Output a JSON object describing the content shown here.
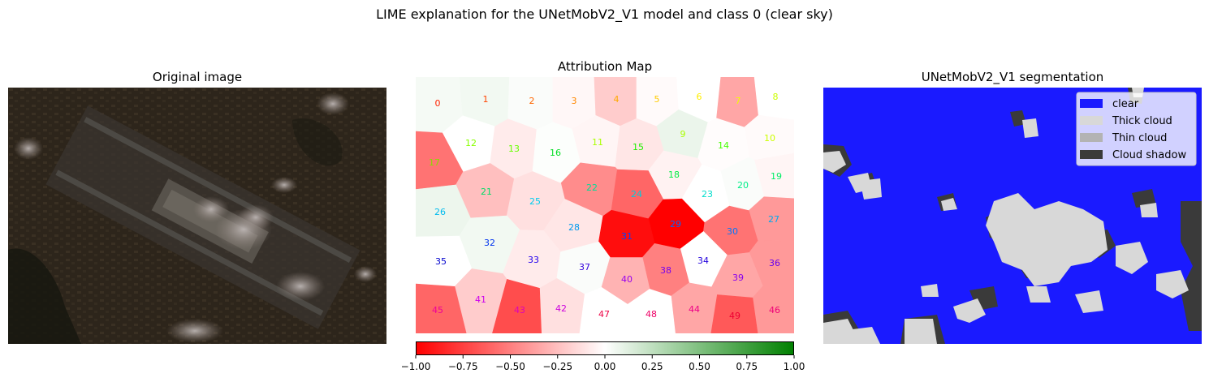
{
  "figure_title": "LIME explanation for the UNetMobV2_V1 model and class 0 (clear sky)",
  "panels": {
    "original": {
      "title": "Original image"
    },
    "attribution": {
      "title": "Attribution Map"
    },
    "segmentation": {
      "title": "UNetMobV2_V1 segmentation"
    }
  },
  "colorbar": {
    "ticks": [
      "−1.00",
      "−0.75",
      "−0.50",
      "−0.25",
      "0.00",
      "0.25",
      "0.50",
      "0.75",
      "1.00"
    ],
    "range": [
      -1,
      1
    ],
    "colors": {
      "neg": "#ff0000",
      "mid": "#ffffff",
      "pos": "#008000"
    }
  },
  "segments": [
    {
      "id": "0",
      "v": 0.04
    },
    {
      "id": "1",
      "v": 0.05
    },
    {
      "id": "2",
      "v": 0.02
    },
    {
      "id": "3",
      "v": -0.03
    },
    {
      "id": "4",
      "v": -0.2
    },
    {
      "id": "5",
      "v": -0.02
    },
    {
      "id": "6",
      "v": 0.0
    },
    {
      "id": "7",
      "v": -0.35
    },
    {
      "id": "8",
      "v": 0.0
    },
    {
      "id": "9",
      "v": 0.08
    },
    {
      "id": "10",
      "v": -0.02
    },
    {
      "id": "11",
      "v": -0.04
    },
    {
      "id": "12",
      "v": 0.0
    },
    {
      "id": "13",
      "v": -0.08
    },
    {
      "id": "14",
      "v": -0.01
    },
    {
      "id": "15",
      "v": -0.1
    },
    {
      "id": "16",
      "v": 0.01
    },
    {
      "id": "17",
      "v": -0.55
    },
    {
      "id": "18",
      "v": -0.05
    },
    {
      "id": "19",
      "v": -0.04
    },
    {
      "id": "20",
      "v": 0.02
    },
    {
      "id": "21",
      "v": -0.25
    },
    {
      "id": "22",
      "v": -0.45
    },
    {
      "id": "23",
      "v": 0.0
    },
    {
      "id": "24",
      "v": -0.6
    },
    {
      "id": "25",
      "v": -0.12
    },
    {
      "id": "26",
      "v": 0.07
    },
    {
      "id": "27",
      "v": -0.4
    },
    {
      "id": "28",
      "v": -0.1
    },
    {
      "id": "29",
      "v": -1.0
    },
    {
      "id": "30",
      "v": -0.55
    },
    {
      "id": "31",
      "v": -0.95
    },
    {
      "id": "32",
      "v": 0.05
    },
    {
      "id": "33",
      "v": -0.08
    },
    {
      "id": "34",
      "v": 0.0
    },
    {
      "id": "35",
      "v": 0.0
    },
    {
      "id": "36",
      "v": -0.4
    },
    {
      "id": "37",
      "v": 0.02
    },
    {
      "id": "38",
      "v": -0.5
    },
    {
      "id": "39",
      "v": -0.35
    },
    {
      "id": "40",
      "v": -0.3
    },
    {
      "id": "41",
      "v": -0.2
    },
    {
      "id": "42",
      "v": -0.12
    },
    {
      "id": "43",
      "v": -0.7
    },
    {
      "id": "44",
      "v": -0.35
    },
    {
      "id": "45",
      "v": -0.6
    },
    {
      "id": "46",
      "v": -0.4
    },
    {
      "id": "47",
      "v": 0.0
    },
    {
      "id": "48",
      "v": 0.0
    },
    {
      "id": "49",
      "v": -0.65
    }
  ],
  "legend": {
    "items": [
      {
        "label": "clear",
        "color": "#1a1aff"
      },
      {
        "label": "Thick cloud",
        "color": "#d8d8d8"
      },
      {
        "label": "Thin cloud",
        "color": "#b3b3b3"
      },
      {
        "label": "Cloud shadow",
        "color": "#3a3a3a"
      }
    ],
    "placement": "top-right"
  }
}
